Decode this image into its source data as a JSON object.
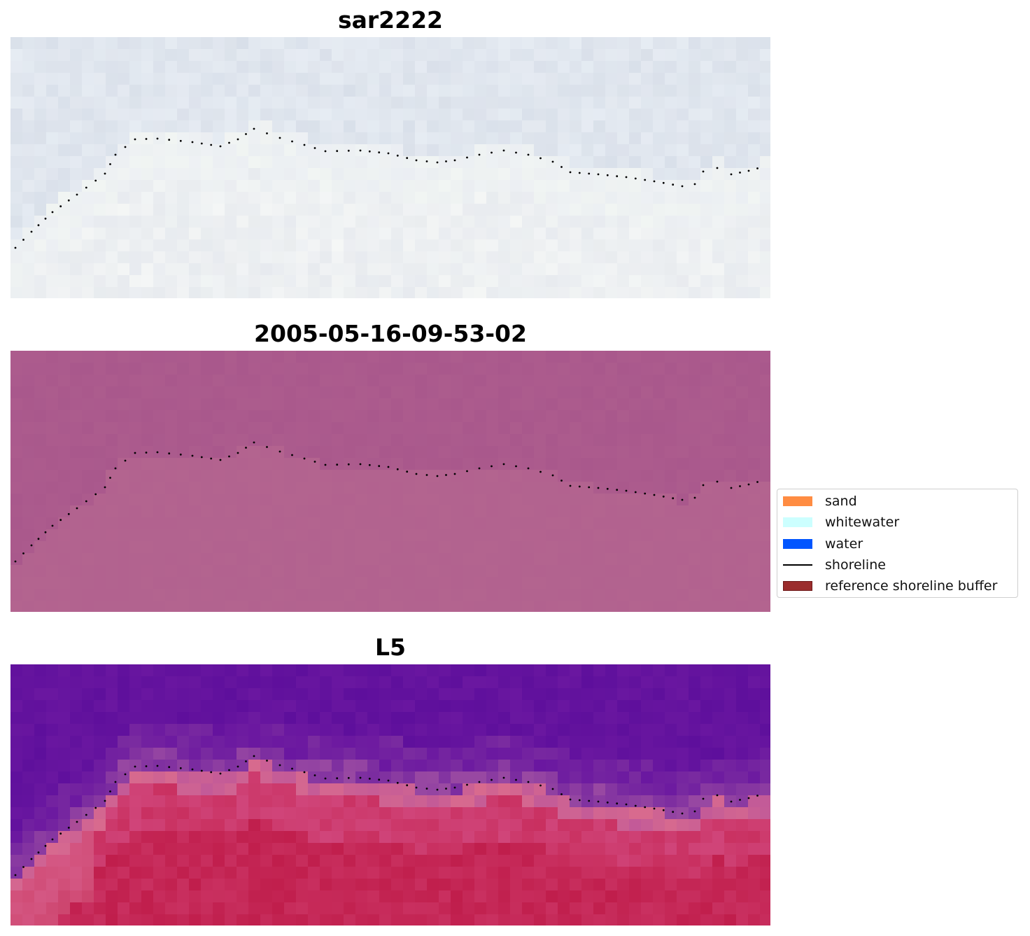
{
  "chart_data": [
    {
      "type": "heatmap",
      "title": "sar2222",
      "colors": [
        "#e6ecf3",
        "#dde3ee",
        "#d8dfe9",
        "#e3e7ef",
        "#eef1f4",
        "#f2f6f3",
        "#e9ecef",
        "#f5f7f6"
      ]
    },
    {
      "type": "heatmap",
      "title": "2005-05-16-09-53-02",
      "colors": [
        "#b0608f",
        "#a9588c",
        "#b3648f",
        "#ad5c8d",
        "#b66695"
      ]
    },
    {
      "type": "heatmap",
      "title": "L5",
      "colors": [
        "#6a17a0",
        "#5e0f9c",
        "#7a2ba0",
        "#9a4aa2",
        "#c25a98",
        "#d0457a",
        "#c93060",
        "#c01e4c",
        "#d86a8e"
      ]
    }
  ],
  "legend": {
    "items": [
      {
        "label": "sand",
        "color": "#ff8c42",
        "kind": "patch"
      },
      {
        "label": "whitewater",
        "color": "#ccffff",
        "kind": "patch"
      },
      {
        "label": "water",
        "color": "#0055ff",
        "kind": "patch"
      },
      {
        "label": "shoreline",
        "color": "#000000",
        "kind": "line"
      },
      {
        "label": "reference shoreline buffer",
        "color": "#9b2d2d",
        "kind": "patch"
      }
    ]
  }
}
